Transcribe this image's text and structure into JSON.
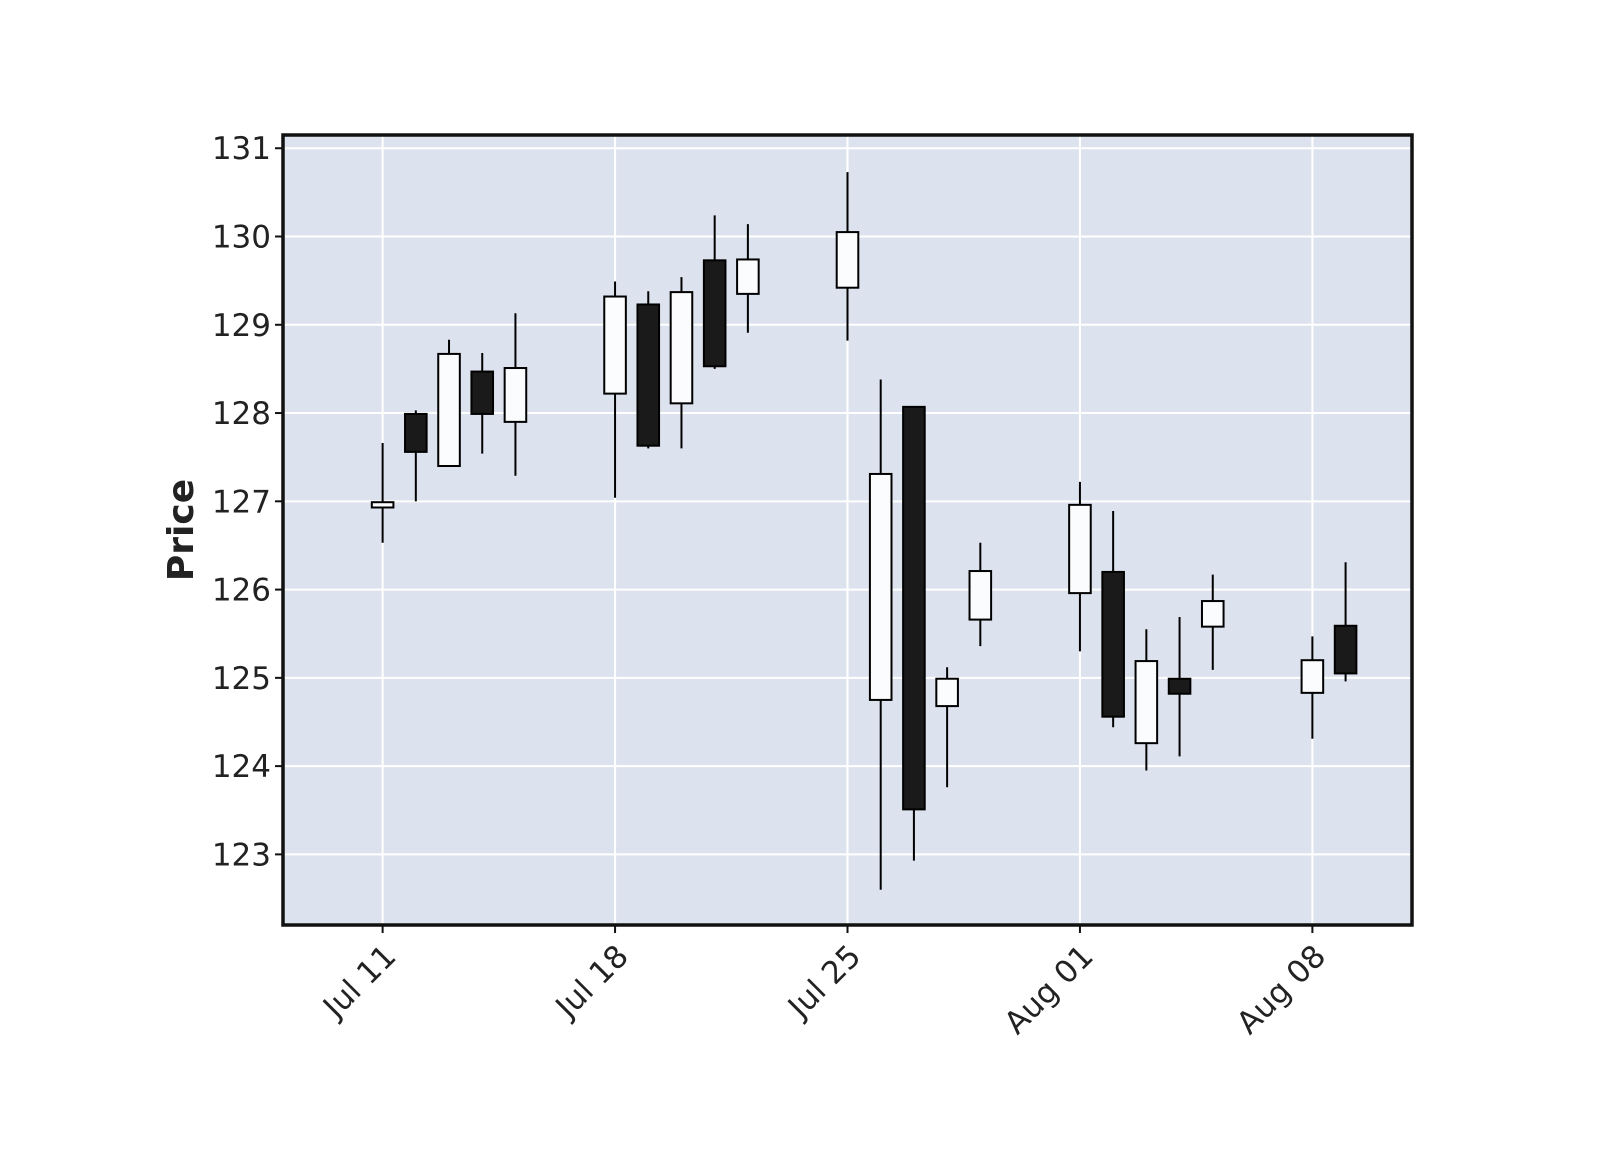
{
  "chart_data": {
    "type": "candlestick",
    "title": "",
    "xlabel": "",
    "ylabel": "Price",
    "ylim": [
      122.2,
      131.15
    ],
    "xlim": [
      "2022-07-08",
      "2022-08-11"
    ],
    "grid": true,
    "x_ticks": [
      {
        "date": "2022-07-11",
        "label": "Jul 11"
      },
      {
        "date": "2022-07-18",
        "label": "Jul 18"
      },
      {
        "date": "2022-07-25",
        "label": "Jul 25"
      },
      {
        "date": "2022-08-01",
        "label": "Aug 01"
      },
      {
        "date": "2022-08-08",
        "label": "Aug 08"
      }
    ],
    "y_ticks": [
      123,
      124,
      125,
      126,
      127,
      128,
      129,
      130,
      131
    ],
    "colors": {
      "background": "#dde3ee",
      "up_fill": "#fbfcfe",
      "down_fill": "#1a1a1a",
      "edge": "#000000",
      "grid": "#ffffff"
    },
    "candles": [
      {
        "date": "2022-07-11",
        "open": 126.93,
        "high": 127.66,
        "low": 126.53,
        "close": 126.99
      },
      {
        "date": "2022-07-12",
        "open": 127.99,
        "high": 128.03,
        "low": 127.0,
        "close": 127.56
      },
      {
        "date": "2022-07-13",
        "open": 127.4,
        "high": 128.83,
        "low": 127.4,
        "close": 128.67
      },
      {
        "date": "2022-07-14",
        "open": 128.47,
        "high": 128.68,
        "low": 127.54,
        "close": 127.99
      },
      {
        "date": "2022-07-15",
        "open": 127.9,
        "high": 129.13,
        "low": 127.29,
        "close": 128.51
      },
      {
        "date": "2022-07-18",
        "open": 128.22,
        "high": 129.49,
        "low": 127.04,
        "close": 129.32
      },
      {
        "date": "2022-07-19",
        "open": 129.23,
        "high": 129.38,
        "low": 127.6,
        "close": 127.63
      },
      {
        "date": "2022-07-20",
        "open": 128.11,
        "high": 129.54,
        "low": 127.6,
        "close": 129.37
      },
      {
        "date": "2022-07-21",
        "open": 129.73,
        "high": 130.24,
        "low": 128.5,
        "close": 128.53
      },
      {
        "date": "2022-07-22",
        "open": 129.35,
        "high": 130.14,
        "low": 128.91,
        "close": 129.74
      },
      {
        "date": "2022-07-25",
        "open": 129.42,
        "high": 130.73,
        "low": 128.82,
        "close": 130.05
      },
      {
        "date": "2022-07-26",
        "open": 124.75,
        "high": 128.38,
        "low": 122.6,
        "close": 127.31
      },
      {
        "date": "2022-07-27",
        "open": 128.07,
        "high": 128.07,
        "low": 122.93,
        "close": 123.51
      },
      {
        "date": "2022-07-28",
        "open": 124.68,
        "high": 125.12,
        "low": 123.76,
        "close": 124.99
      },
      {
        "date": "2022-07-29",
        "open": 125.66,
        "high": 126.53,
        "low": 125.36,
        "close": 126.21
      },
      {
        "date": "2022-08-01",
        "open": 125.96,
        "high": 127.22,
        "low": 125.3,
        "close": 126.96
      },
      {
        "date": "2022-08-02",
        "open": 126.2,
        "high": 126.89,
        "low": 124.44,
        "close": 124.56
      },
      {
        "date": "2022-08-03",
        "open": 124.26,
        "high": 125.55,
        "low": 123.95,
        "close": 125.19
      },
      {
        "date": "2022-08-04",
        "open": 124.99,
        "high": 125.69,
        "low": 124.11,
        "close": 124.82
      },
      {
        "date": "2022-08-05",
        "open": 125.58,
        "high": 126.17,
        "low": 125.09,
        "close": 125.87
      },
      {
        "date": "2022-08-08",
        "open": 124.83,
        "high": 125.47,
        "low": 124.31,
        "close": 125.2
      },
      {
        "date": "2022-08-09",
        "open": 125.59,
        "high": 126.31,
        "low": 124.96,
        "close": 125.05
      }
    ]
  }
}
